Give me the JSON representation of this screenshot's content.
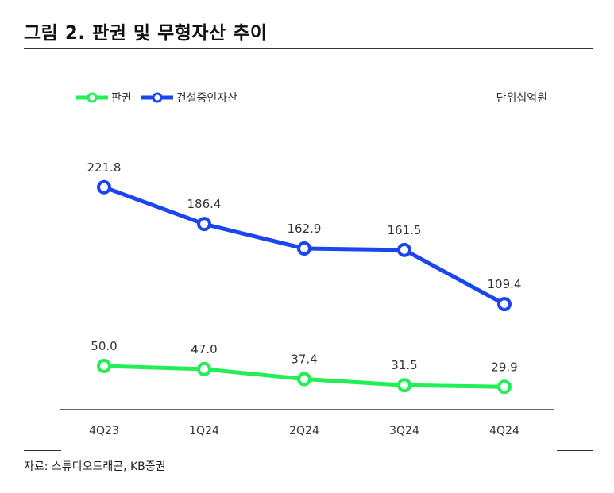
{
  "figure": {
    "title": "그림 2. 판권 및 무형자산 추이",
    "source": "자료: 스튜디오드래곤, KB증권"
  },
  "chart_data": {
    "type": "line",
    "categories": [
      "4Q23",
      "1Q24",
      "2Q24",
      "3Q24",
      "4Q24"
    ],
    "unit": "단위십억원",
    "series": [
      {
        "name": "판권",
        "color": "#22ee55",
        "values": [
          50.0,
          47.0,
          37.4,
          31.5,
          29.9
        ]
      },
      {
        "name": "건설중인자산",
        "color": "#1a45f0",
        "values": [
          221.8,
          186.4,
          162.9,
          161.5,
          109.4
        ]
      }
    ],
    "grid": false,
    "legend_position": "top-left"
  }
}
